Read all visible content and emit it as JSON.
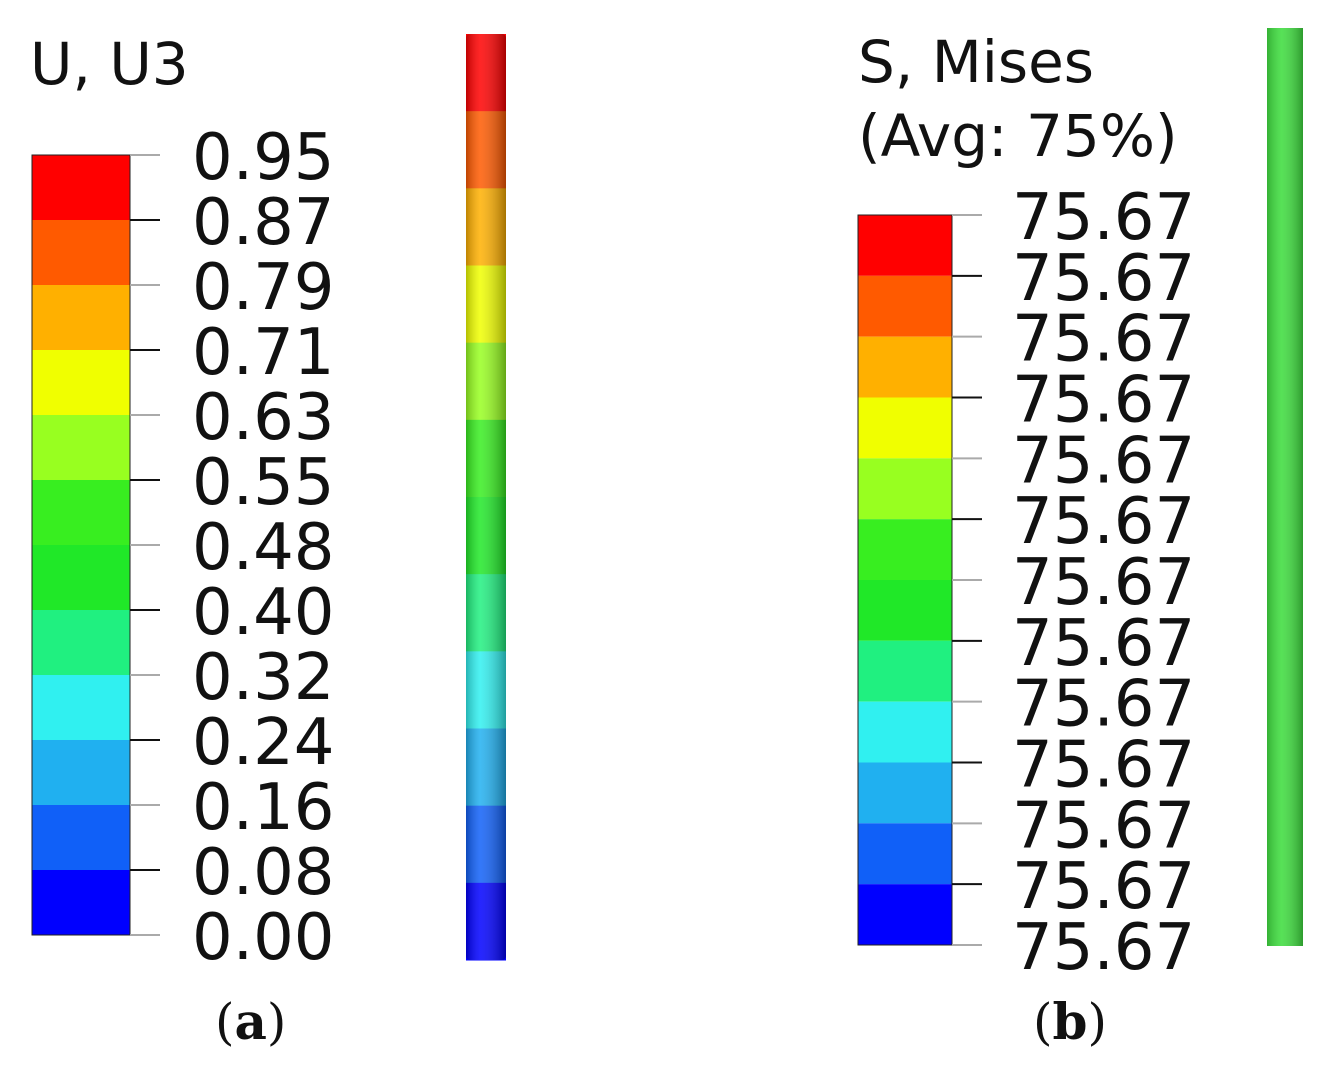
{
  "colors": [
    "#ff0000",
    "#ff5a00",
    "#ffb000",
    "#f0ff00",
    "#98ff20",
    "#38ee20",
    "#20e828",
    "#20f080",
    "#30f0f0",
    "#20b0f0",
    "#1060f8",
    "#0000ff"
  ],
  "panel_a": {
    "title": "U, U3",
    "tick_labels": [
      "0.95",
      "0.87",
      "0.79",
      "0.71",
      "0.63",
      "0.55",
      "0.48",
      "0.40",
      "0.32",
      "0.24",
      "0.16",
      "0.08",
      "0.00"
    ],
    "model_color_order": "red at top to blue at bottom (same bands as legend)",
    "caption": {
      "open": "(",
      "letter": "a",
      "close": ")"
    }
  },
  "panel_b": {
    "title_line1": "S, Mises",
    "title_line2": "(Avg: 75%)",
    "tick_labels": [
      "75.67",
      "75.67",
      "75.67",
      "75.67",
      "75.67",
      "75.67",
      "75.67",
      "75.67",
      "75.67",
      "75.67",
      "75.67",
      "75.67",
      "75.67"
    ],
    "model_color": "#40dd40",
    "caption": {
      "open": "(",
      "letter": "b",
      "close": ")"
    }
  }
}
